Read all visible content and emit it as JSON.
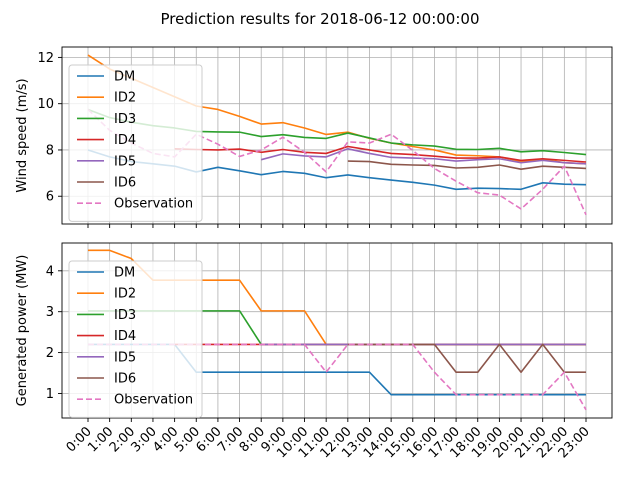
{
  "chart_data": {
    "type": "line",
    "title": "Prediction results for 2018-06-12 00:00:00",
    "categories": [
      "0:00",
      "1:00",
      "2:00",
      "3:00",
      "4:00",
      "5:00",
      "6:00",
      "7:00",
      "8:00",
      "9:00",
      "10:00",
      "11:00",
      "12:00",
      "13:00",
      "14:00",
      "15:00",
      "16:00",
      "17:00",
      "18:00",
      "19:00",
      "20:00",
      "21:00",
      "22:00",
      "23:00"
    ],
    "colors": {
      "DM": "#1f77b4",
      "ID2": "#ff7f0e",
      "ID3": "#2ca02c",
      "ID4": "#d62728",
      "ID5": "#9467bd",
      "ID6": "#8c564b",
      "Observation": "#e377c2"
    },
    "grid": true,
    "legend_position": "upper-left",
    "panels": [
      {
        "ylabel": "Wind speed (m/s)",
        "ylim": [
          4.8,
          12.45
        ],
        "yticks": [
          6,
          8,
          10,
          12
        ],
        "series": [
          {
            "name": "DM",
            "style": "solid",
            "values": [
              8.0,
              7.7,
              7.5,
              7.4,
              7.3,
              7.05,
              7.25,
              7.1,
              6.93,
              7.07,
              6.99,
              6.8,
              6.92,
              6.8,
              6.7,
              6.6,
              6.48,
              6.3,
              6.35,
              6.33,
              6.3,
              6.58,
              6.52,
              6.5
            ]
          },
          {
            "name": "ID2",
            "style": "solid",
            "values": [
              12.1,
              11.5,
              11.1,
              10.7,
              10.3,
              9.9,
              9.75,
              9.45,
              9.12,
              9.18,
              8.95,
              8.67,
              8.77,
              8.5,
              8.3,
              8.15,
              8.0,
              7.78,
              7.75,
              7.7,
              7.5,
              7.6,
              7.45,
              7.4
            ]
          },
          {
            "name": "ID3",
            "style": "solid",
            "values": [
              9.75,
              9.4,
              9.2,
              9.05,
              8.95,
              8.8,
              8.78,
              8.77,
              8.58,
              8.66,
              8.54,
              8.5,
              8.73,
              8.52,
              8.3,
              8.22,
              8.17,
              8.03,
              8.02,
              8.07,
              7.92,
              7.97,
              7.89,
              7.8
            ]
          },
          {
            "name": "ID4",
            "style": "solid",
            "values": [
              null,
              null,
              null,
              null,
              8.05,
              8.02,
              8.0,
              8.04,
              7.9,
              8.02,
              7.9,
              7.85,
              8.15,
              8.0,
              7.85,
              7.8,
              7.73,
              7.65,
              7.65,
              7.7,
              7.55,
              7.62,
              7.55,
              7.48
            ]
          },
          {
            "name": "ID5",
            "style": "solid",
            "values": [
              null,
              null,
              null,
              null,
              null,
              null,
              null,
              null,
              7.58,
              7.83,
              7.74,
              7.7,
              8.05,
              7.85,
              7.68,
              7.65,
              7.62,
              7.52,
              7.58,
              7.62,
              7.45,
              7.55,
              7.45,
              7.4
            ]
          },
          {
            "name": "ID6",
            "style": "solid",
            "values": [
              null,
              null,
              null,
              null,
              null,
              null,
              null,
              null,
              null,
              null,
              null,
              null,
              7.52,
              7.5,
              7.38,
              7.35,
              7.33,
              7.22,
              7.25,
              7.35,
              7.17,
              7.3,
              7.25,
              7.2
            ]
          },
          {
            "name": "Observation",
            "style": "dashed",
            "values": [
              9.75,
              8.85,
              8.3,
              7.85,
              7.7,
              8.68,
              8.25,
              7.72,
              8.0,
              8.55,
              7.9,
              7.05,
              8.35,
              8.3,
              8.68,
              7.98,
              7.2,
              6.65,
              6.15,
              6.05,
              5.45,
              6.3,
              7.3,
              5.2
            ]
          }
        ]
      },
      {
        "ylabel": "Generated power (MW)",
        "ylim": [
          0.4,
          4.68
        ],
        "yticks": [
          1,
          2,
          3,
          4
        ],
        "series": [
          {
            "name": "DM",
            "style": "solid",
            "values": [
              2.2,
              2.2,
              2.2,
              2.2,
              2.2,
              1.52,
              1.52,
              1.52,
              1.52,
              1.52,
              1.52,
              1.52,
              1.52,
              1.52,
              0.97,
              0.97,
              0.97,
              0.97,
              0.97,
              0.97,
              0.97,
              0.97,
              0.97,
              0.97
            ]
          },
          {
            "name": "ID2",
            "style": "solid",
            "values": [
              4.5,
              4.5,
              4.3,
              3.77,
              3.77,
              3.77,
              3.77,
              3.77,
              3.02,
              3.02,
              3.02,
              2.2,
              2.2,
              2.2,
              2.2,
              2.2,
              2.2,
              2.2,
              2.2,
              2.2,
              2.2,
              2.2,
              2.2,
              2.2
            ]
          },
          {
            "name": "ID3",
            "style": "solid",
            "values": [
              3.02,
              3.02,
              3.02,
              3.02,
              3.02,
              3.02,
              3.02,
              3.02,
              2.2,
              2.2,
              2.2,
              2.2,
              2.2,
              2.2,
              2.2,
              2.2,
              2.2,
              2.2,
              2.2,
              2.2,
              2.2,
              2.2,
              2.2,
              2.2
            ]
          },
          {
            "name": "ID4",
            "style": "solid",
            "values": [
              null,
              null,
              null,
              null,
              2.2,
              2.2,
              2.2,
              2.2,
              2.2,
              2.2,
              2.2,
              2.2,
              2.2,
              2.2,
              2.2,
              2.2,
              2.2,
              2.2,
              2.2,
              2.2,
              2.2,
              2.2,
              2.2,
              2.2
            ]
          },
          {
            "name": "ID5",
            "style": "solid",
            "values": [
              null,
              null,
              null,
              null,
              null,
              null,
              null,
              null,
              2.2,
              2.2,
              2.2,
              2.2,
              2.2,
              2.2,
              2.2,
              2.2,
              2.2,
              2.2,
              2.2,
              2.2,
              2.2,
              2.2,
              2.2,
              2.2
            ]
          },
          {
            "name": "ID6",
            "style": "solid",
            "values": [
              null,
              null,
              null,
              null,
              null,
              null,
              null,
              null,
              null,
              null,
              null,
              null,
              2.2,
              2.2,
              2.2,
              2.2,
              2.2,
              1.52,
              1.52,
              2.2,
              1.52,
              2.2,
              1.52,
              1.52
            ]
          },
          {
            "name": "Observation",
            "style": "dashed",
            "values": [
              2.2,
              2.2,
              2.2,
              2.2,
              2.2,
              2.2,
              2.2,
              2.2,
              2.2,
              2.2,
              2.2,
              1.52,
              2.2,
              2.2,
              2.2,
              2.2,
              1.52,
              0.97,
              0.97,
              0.97,
              0.97,
              0.97,
              1.52,
              0.6
            ]
          }
        ]
      }
    ]
  }
}
